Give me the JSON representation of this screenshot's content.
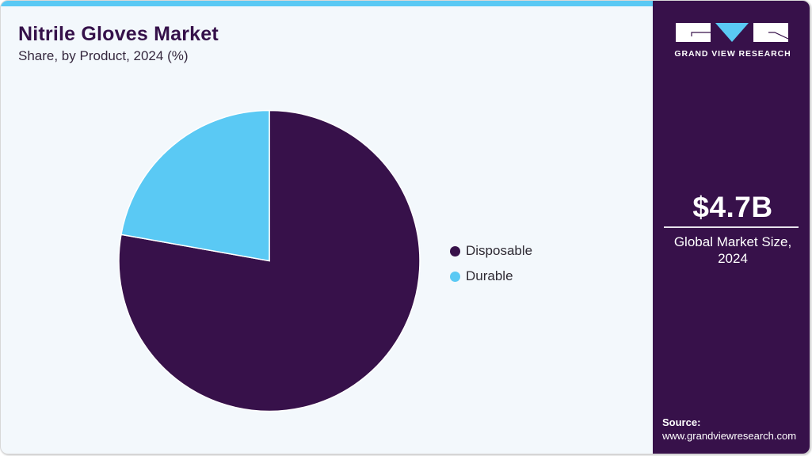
{
  "header": {
    "title": "Nitrile Gloves Market",
    "subtitle": "Share, by Product, 2024 (%)"
  },
  "colors": {
    "disposable": "#37114a",
    "durable": "#5ac9f4",
    "accent_bar": "#5ac9f4",
    "panel": "#37114a",
    "background": "#f3f8fc"
  },
  "legend": {
    "items": [
      {
        "label": "Disposable",
        "color": "#37114a"
      },
      {
        "label": "Durable",
        "color": "#5ac9f4"
      }
    ]
  },
  "side_panel": {
    "logo_icon": "grand-view-research-logo",
    "brand": "GRAND VIEW RESEARCH",
    "market_value": "$4.7B",
    "market_caption_line1": "Global Market Size,",
    "market_caption_line2": "2024",
    "source_label": "Source:",
    "source_url": "www.grandviewresearch.com"
  },
  "chart_data": {
    "type": "pie",
    "title": "Nitrile Gloves Market",
    "subtitle": "Share, by Product, 2024 (%)",
    "categories": [
      "Disposable",
      "Durable"
    ],
    "values": [
      77.8,
      22.2
    ],
    "colors": [
      "#37114a",
      "#5ac9f4"
    ],
    "legend_position": "right",
    "start_angle_deg": 0,
    "direction": "clockwise from top for Disposable; Durable occupies top-left",
    "annotations": [
      "$4.7B Global Market Size, 2024"
    ]
  }
}
